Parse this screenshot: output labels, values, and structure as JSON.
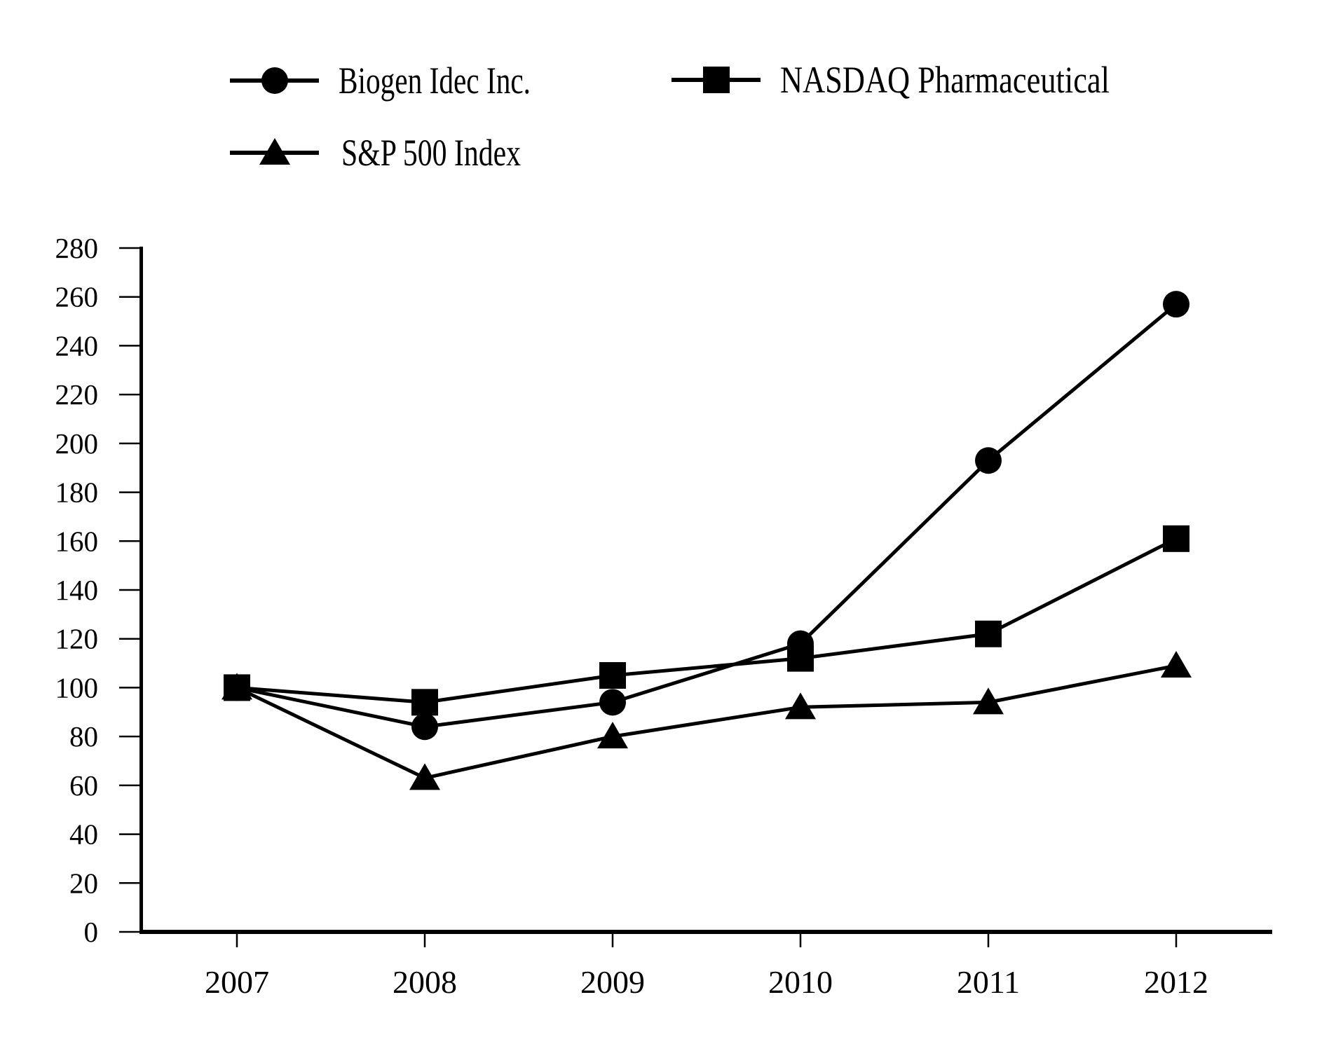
{
  "chart_data": {
    "type": "line",
    "title": "",
    "xlabel": "",
    "ylabel": "",
    "categories": [
      "2007",
      "2008",
      "2009",
      "2010",
      "2011",
      "2012"
    ],
    "series": [
      {
        "name": "Biogen Idec Inc.",
        "marker": "circle",
        "values": [
          100,
          84,
          94,
          118,
          193,
          257
        ]
      },
      {
        "name": "NASDAQ Pharmaceutical",
        "marker": "square",
        "values": [
          100,
          94,
          105,
          112,
          122,
          161
        ]
      },
      {
        "name": "S&P 500 Index",
        "marker": "triangle",
        "values": [
          100,
          63,
          80,
          92,
          94,
          109
        ]
      }
    ],
    "ylim": [
      0,
      280
    ],
    "ytick_step": 20,
    "y_tick_labels": [
      "280",
      "260",
      "240",
      "220",
      "200",
      "180",
      "160",
      "140",
      "120",
      "100",
      "80",
      "60",
      "40",
      "20",
      "0"
    ],
    "grid": false,
    "legend_position": "top-left",
    "colors": {
      "foreground": "#000000",
      "background": "#ffffff"
    }
  },
  "legend": {
    "items": [
      {
        "label": "Biogen Idec Inc."
      },
      {
        "label": "NASDAQ Pharmaceutical"
      },
      {
        "label": "S&P 500 Index"
      }
    ]
  }
}
